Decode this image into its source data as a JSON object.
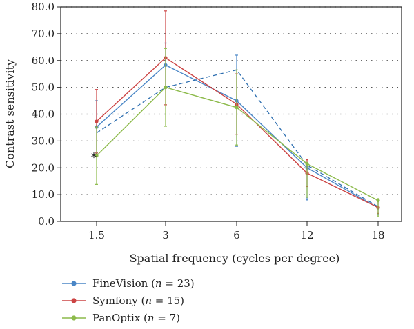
{
  "chart_data": {
    "type": "line",
    "xlabel": "Spatial frequency (cycles per degree)",
    "ylabel": "Contrast sensitivity",
    "categories": [
      "1.5",
      "3",
      "6",
      "12",
      "18"
    ],
    "ylim": [
      0,
      80
    ],
    "yticks": [
      "0.0",
      "10.0",
      "20.0",
      "30.0",
      "40.0",
      "50.0",
      "60.0",
      "70.0",
      "80.0"
    ],
    "grid": "horizontal dotted",
    "legend_position": "bottom-left",
    "series": [
      {
        "name": "FineVision",
        "n": "23",
        "color": "#4a86c6",
        "values": [
          35.2,
          58.3,
          45.0,
          20.0,
          5.1
        ],
        "err_low": [
          25.5,
          50.0,
          28.0,
          8.0,
          2.8
        ],
        "err_high": [
          45.0,
          66.5,
          62.0,
          21.5,
          7.5
        ]
      },
      {
        "name": "Symfony",
        "n": "15",
        "color": "#cc4444",
        "values": [
          37.3,
          61.0,
          43.7,
          18.0,
          5.2
        ],
        "err_low": [
          25.5,
          43.5,
          32.5,
          13.0,
          3.0
        ],
        "err_high": [
          49.2,
          78.5,
          55.0,
          23.0,
          7.5
        ]
      },
      {
        "name": "PanOptix",
        "n": "7",
        "color": "#8cba4a",
        "values": [
          24.5,
          50.0,
          42.5,
          21.5,
          7.8
        ],
        "err_low": [
          13.8,
          35.5,
          28.5,
          9.0,
          2.0
        ],
        "err_high": [
          35.2,
          64.5,
          56.5,
          22.0,
          8.5
        ]
      },
      {
        "color": "#2e6fb0",
        "dashed": true,
        "values": [
          33.0,
          50.0,
          56.5,
          21.0,
          5.5
        ]
      }
    ],
    "annotations": [
      {
        "label": "*",
        "x": "1.5",
        "y": 24.5
      }
    ]
  },
  "legend": {
    "items": [
      {
        "name": "FineVision",
        "n_text": "n",
        "equals": " = 23"
      },
      {
        "name": "Symfony",
        "n_text": "n",
        "equals": " = 15"
      },
      {
        "name": "PanOptix",
        "n_text": "n",
        "equals": " = 7"
      }
    ]
  }
}
